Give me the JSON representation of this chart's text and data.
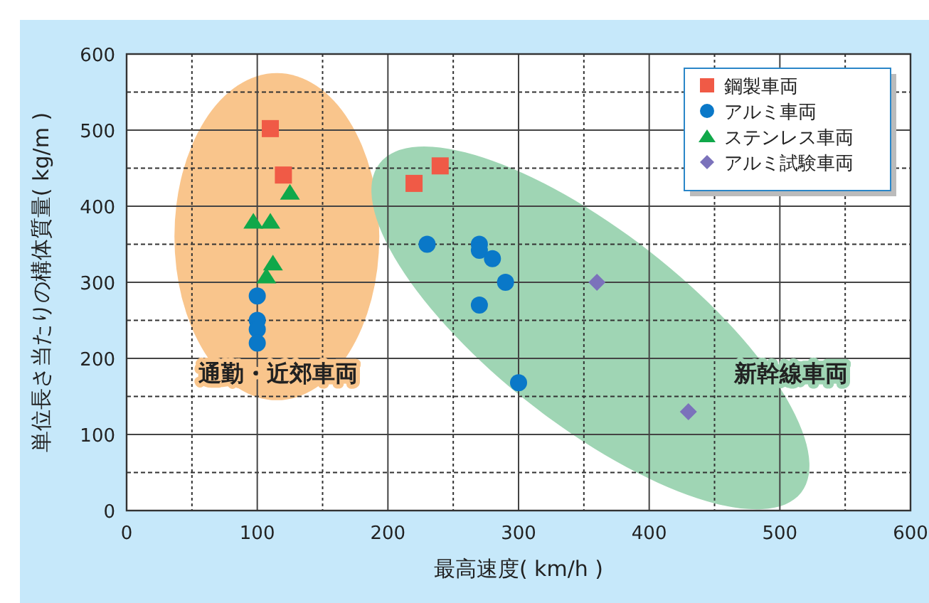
{
  "chart_data": {
    "type": "scatter",
    "xlabel": "最高速度( km/h )",
    "ylabel": "単位長さ当たりの構体質量( kg/m )",
    "xlim": [
      0,
      600
    ],
    "ylim": [
      0,
      600
    ],
    "xticks": [
      0,
      100,
      200,
      300,
      400,
      500,
      600
    ],
    "yticks": [
      0,
      100,
      200,
      300,
      400,
      500,
      600
    ],
    "grid": true,
    "legend": "top right",
    "annotations": [
      "通勤・近郊車両",
      "新幹線車両"
    ],
    "series": [
      {
        "name": "鋼製車両",
        "color": "#f05a46",
        "marker": "square",
        "x": [
          110,
          120,
          220,
          240
        ],
        "values": [
          502,
          441,
          430,
          453
        ]
      },
      {
        "name": "アルミ車両",
        "color": "#0a78c8",
        "marker": "circle",
        "x": [
          100,
          100,
          100,
          100,
          230,
          270,
          270,
          280,
          290,
          270,
          300
        ],
        "values": [
          282,
          250,
          238,
          220,
          350,
          350,
          342,
          331,
          300,
          270,
          168
        ]
      },
      {
        "name": "ステンレス車両",
        "color": "#10a84a",
        "marker": "triangle",
        "x": [
          97,
          110,
          125,
          112,
          107
        ],
        "values": [
          380,
          380,
          418,
          325,
          308
        ]
      },
      {
        "name": "アルミ試験車両",
        "color": "#7b72bb",
        "marker": "diamond",
        "x": [
          360,
          430
        ],
        "values": [
          300,
          130
        ]
      }
    ]
  }
}
